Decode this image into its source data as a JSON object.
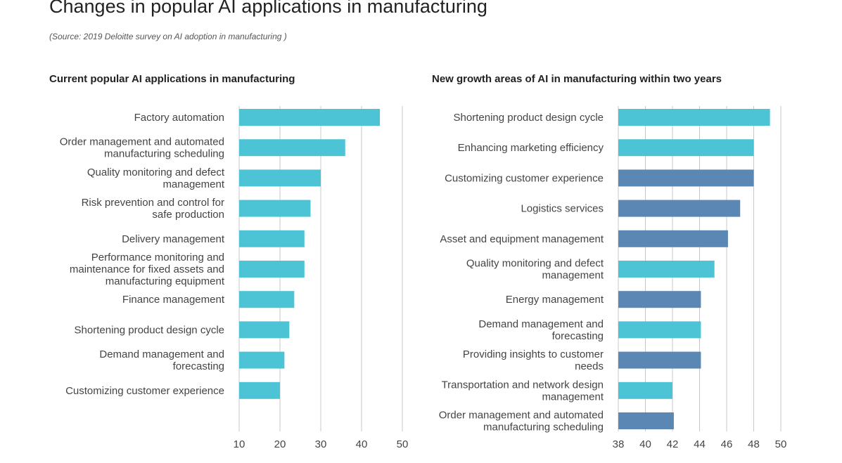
{
  "title": "Changes in popular AI applications in manufacturing",
  "subtitle": "(Source: 2019 Deloitte survey on AI adoption in manufacturing )",
  "colors": {
    "light_bar": "#4cc4d6",
    "dark_bar": "#5a87b3",
    "grid": "#c8c8c8",
    "text": "#444444"
  },
  "chart_data": [
    {
      "type": "bar",
      "orientation": "horizontal",
      "title": "Current popular AI applications in manufacturing",
      "xlim": [
        10,
        50
      ],
      "xticks": [
        10,
        20,
        30,
        40,
        50
      ],
      "grid": true,
      "categories": [
        [
          "Factory automation"
        ],
        [
          "Order management and automated",
          "manufacturing scheduling"
        ],
        [
          "Quality monitoring and defect",
          "management"
        ],
        [
          "Risk prevention and control for",
          "safe production"
        ],
        [
          "Delivery management"
        ],
        [
          "Performance monitoring and",
          "maintenance for fixed assets and",
          "manufacturing equipment"
        ],
        [
          "Finance management"
        ],
        [
          "Shortening product design cycle"
        ],
        [
          "Demand management and",
          "forecasting"
        ],
        [
          "Customizing customer experience"
        ]
      ],
      "values": [
        44.5,
        36,
        30,
        27.5,
        26,
        26,
        23.5,
        22.3,
        21.1,
        20
      ],
      "bar_colors": [
        "light",
        "light",
        "light",
        "light",
        "light",
        "light",
        "light",
        "light",
        "light",
        "light"
      ]
    },
    {
      "type": "bar",
      "orientation": "horizontal",
      "title": "New growth areas of AI in manufacturing within two years",
      "xlim": [
        38,
        50
      ],
      "xticks": [
        38,
        40,
        42,
        44,
        46,
        48,
        50
      ],
      "grid": true,
      "categories": [
        [
          "Shortening product design cycle"
        ],
        [
          "Enhancing marketing efficiency"
        ],
        [
          "Customizing customer experience"
        ],
        [
          "Logistics services"
        ],
        [
          "Asset and equipment management"
        ],
        [
          "Quality monitoring and defect",
          "management"
        ],
        [
          "Energy management"
        ],
        [
          "Demand management and",
          "forecasting"
        ],
        [
          "Providing insights to customer",
          "needs"
        ],
        [
          "Transportation and network design",
          "management"
        ],
        [
          "Order management and automated",
          "manufacturing scheduling"
        ]
      ],
      "values": [
        49.2,
        48,
        48,
        47,
        46.1,
        45.1,
        44.1,
        44.1,
        44.1,
        42,
        42.1
      ],
      "bar_colors": [
        "light",
        "light",
        "dark",
        "dark",
        "dark",
        "light",
        "dark",
        "light",
        "dark",
        "light",
        "dark"
      ]
    }
  ]
}
